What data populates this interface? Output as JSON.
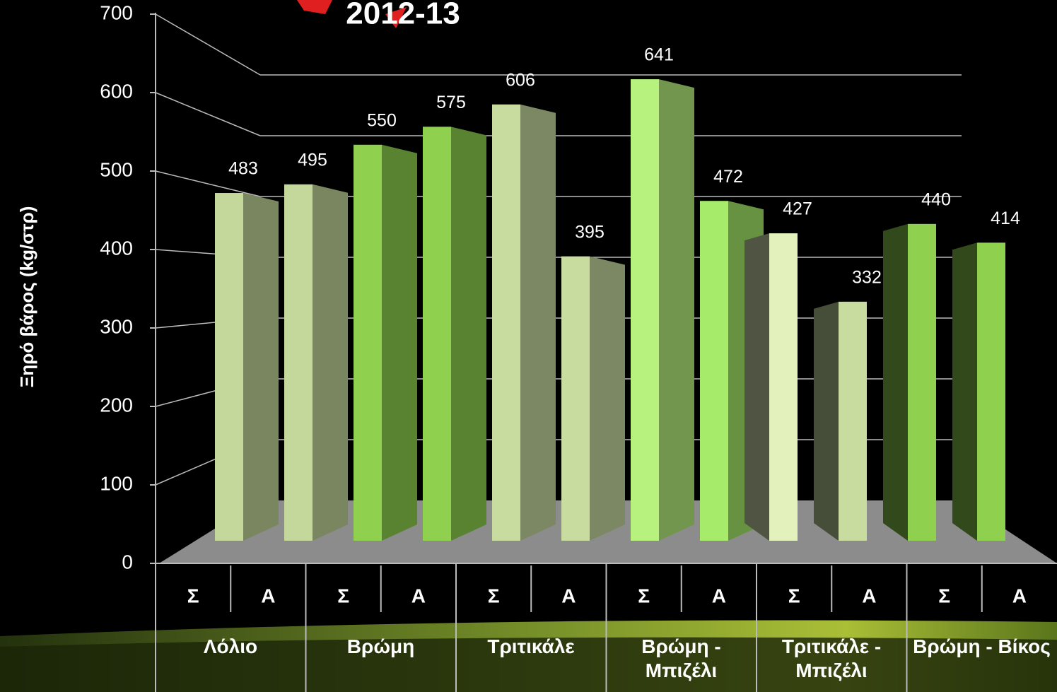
{
  "chart_data": {
    "type": "bar3d",
    "title": "2012-13",
    "y_label": "Ξηρό βάρος (kg/στρ)",
    "categories": [
      "Σ",
      "Α",
      "Σ",
      "Α",
      "Σ",
      "Α",
      "Σ",
      "Α",
      "Σ",
      "Α",
      "Σ",
      "Α"
    ],
    "groups": [
      "Λόλιο",
      "Βρώμη",
      "Τριτικάλε",
      "Βρώμη - Μπιζέλι",
      "Τριτικάλε - Μπιζέλι",
      "Βρώμη - Βίκος"
    ],
    "values": [
      483,
      495,
      550,
      575,
      606,
      395,
      641,
      472,
      427,
      332,
      440,
      414
    ],
    "colors": [
      "#c5d89b",
      "#c5d89b",
      "#8fd14f",
      "#8fd14f",
      "#c8dc9f",
      "#c8dc9f",
      "#b8f27e",
      "#a6ec6a",
      "#e3f2bd",
      "#c8dc9f",
      "#8fd14f",
      "#8fd14f"
    ],
    "ylim": [
      0,
      700
    ],
    "yticks": [
      0,
      100,
      200,
      300,
      400,
      500,
      600,
      700
    ],
    "grid": true
  }
}
